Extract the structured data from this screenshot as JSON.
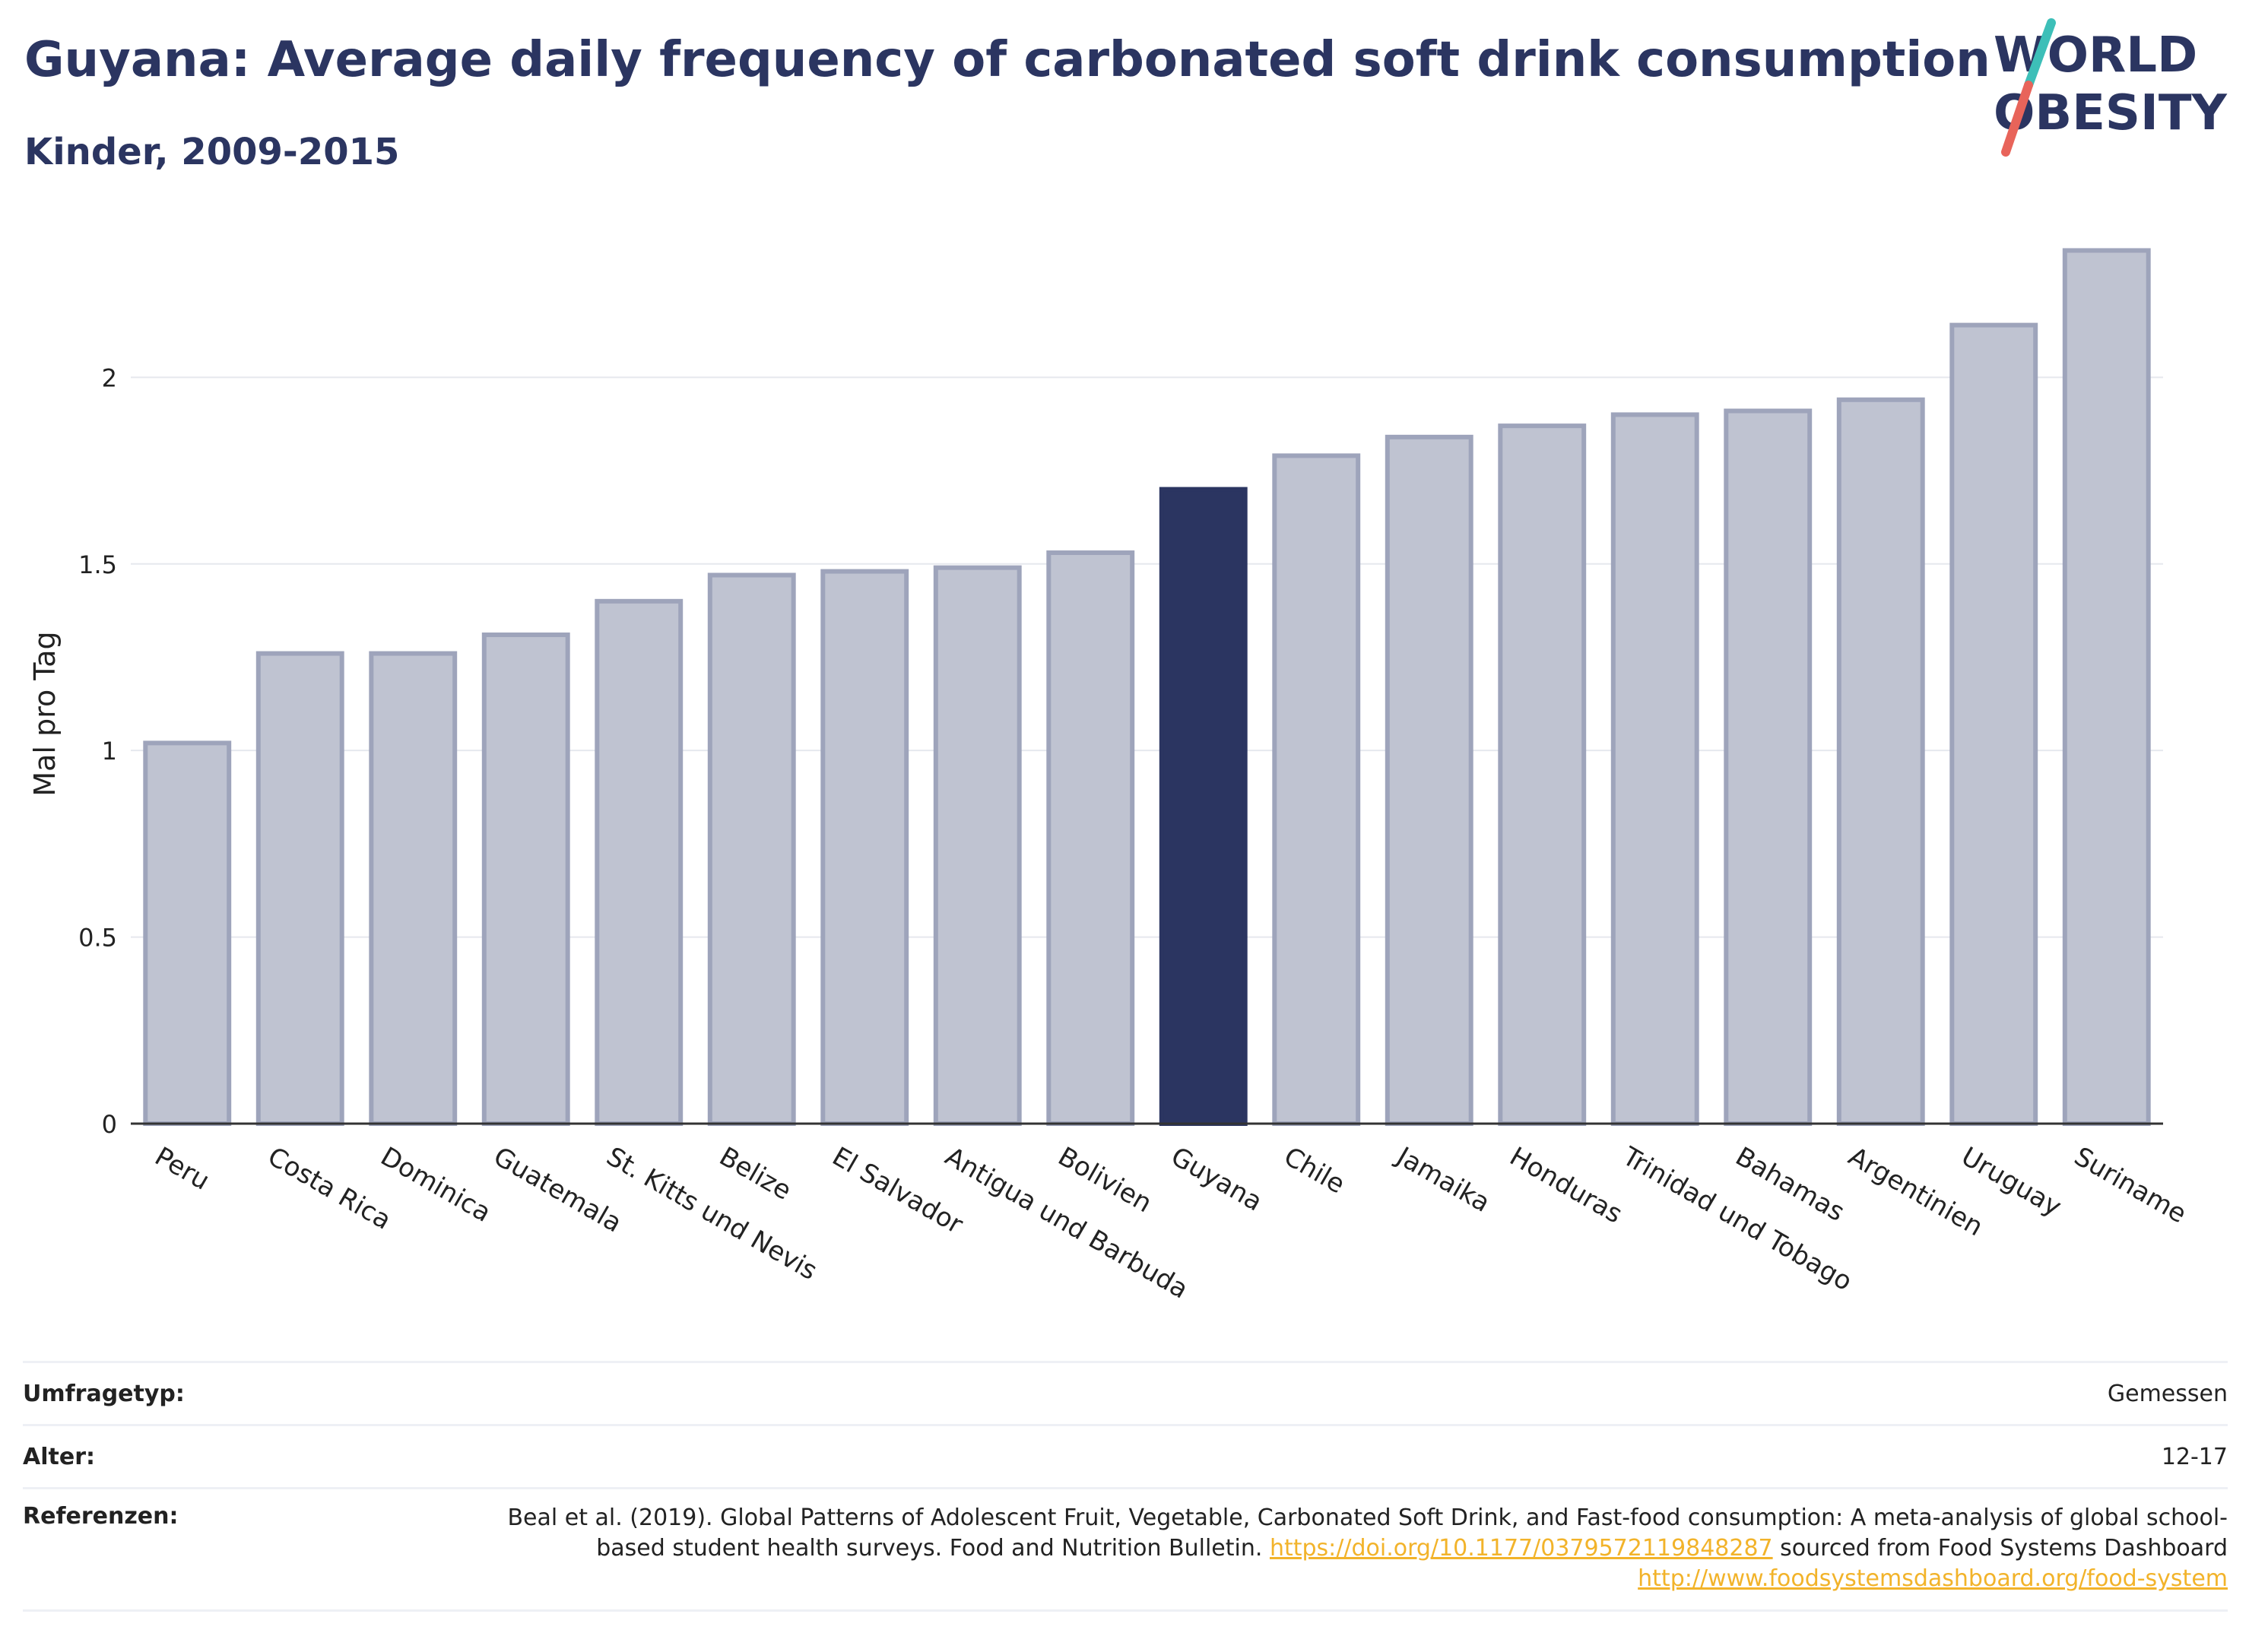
{
  "title": "Guyana: Average daily frequency of carbonated soft drink consumption",
  "subtitle": "Kinder, 2009-2015",
  "logo": {
    "line1": "WORLD",
    "line2": "OBESITY"
  },
  "colors": {
    "bar": "#bfc3d1",
    "bar_border": "#9ea4bb",
    "highlight": "#2b3561",
    "title": "#2b3561",
    "link": "#f2b32a"
  },
  "chart_data": {
    "type": "bar",
    "ylabel": "Mal pro Tag",
    "ylim": [
      0,
      2.4
    ],
    "yticks": [
      0,
      0.5,
      1,
      1.5,
      2
    ],
    "ytick_labels": [
      "0",
      "0.5",
      "1",
      "1.5",
      "2"
    ],
    "categories": [
      "Peru",
      "Costa Rica",
      "Dominica",
      "Guatemala",
      "St. Kitts und Nevis",
      "Belize",
      "El Salvador",
      "Antigua und Barbuda",
      "Bolivien",
      "Guyana",
      "Chile",
      "Jamaika",
      "Honduras",
      "Trinidad und Tobago",
      "Bahamas",
      "Argentinien",
      "Uruguay",
      "Suriname"
    ],
    "values": [
      1.02,
      1.26,
      1.26,
      1.31,
      1.4,
      1.47,
      1.48,
      1.49,
      1.53,
      1.7,
      1.79,
      1.84,
      1.87,
      1.9,
      1.91,
      1.94,
      2.14,
      2.34
    ],
    "highlight": "Guyana",
    "grid": true
  },
  "info": {
    "survey_label": "Umfragetyp:",
    "survey_value": "Gemessen",
    "age_label": "Alter:",
    "age_value": "12-17",
    "ref_label": "Referenzen:",
    "ref_text_1": "Beal et al. (2019). Global Patterns of Adolescent Fruit, Vegetable, Carbonated Soft Drink, and Fast-food consumption: A meta-analysis of global school-based student health surveys. Food and Nutrition Bulletin.",
    "ref_link_1": "https://doi.org/10.1177/0379572119848287",
    "ref_text_2": "sourced from Food Systems Dashboard",
    "ref_link_2": "http://www.foodsystemsdashboard.org/food-system"
  }
}
